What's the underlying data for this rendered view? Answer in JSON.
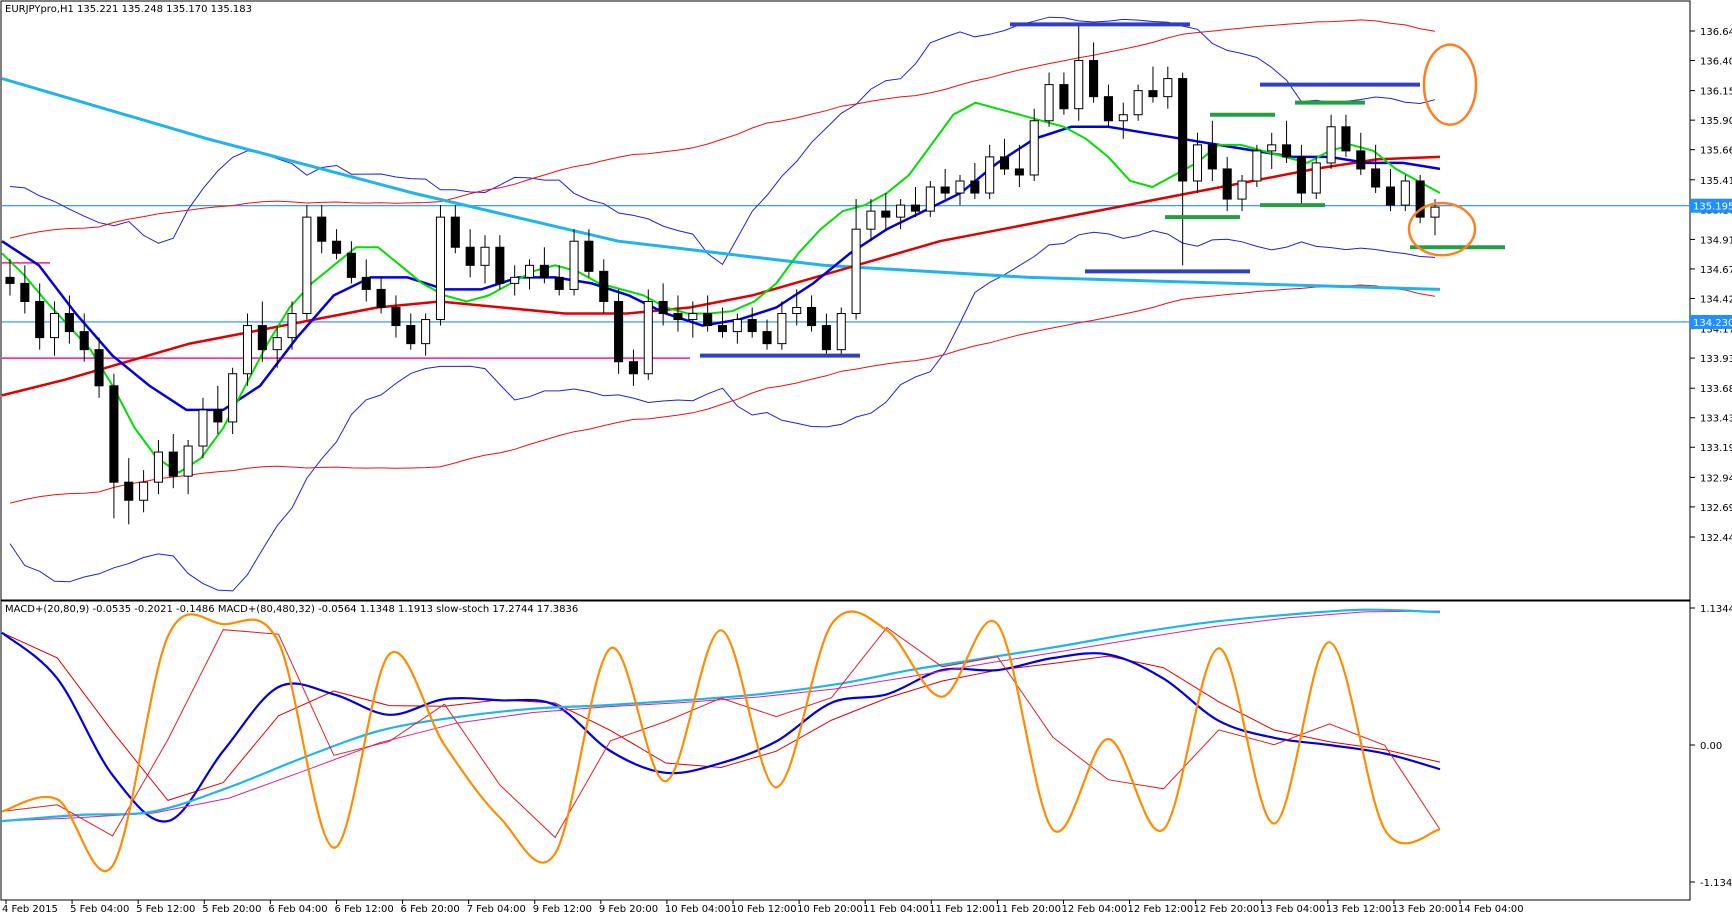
{
  "main_panel": {
    "header": "EURJPYpro,H1  135.221 135.248 135.170 135.183",
    "price_ticks": [
      "136.645",
      "136.400",
      "136.150",
      "135.905",
      "135.660",
      "135.410",
      "135.165",
      "134.915",
      "134.670",
      "134.425",
      "134.175",
      "133.930",
      "133.680",
      "133.435",
      "133.190",
      "132.940",
      "132.695",
      "132.445"
    ],
    "price_tags": [
      {
        "label": "135.195",
        "value": 135.195,
        "color": "#1e90ff"
      },
      {
        "label": "134.230",
        "value": 134.23,
        "color": "#1e90ff"
      }
    ]
  },
  "sub_panel": {
    "header": "MACD+(20,80,9) -0.0535 -0.2021 -0.1486  MACD+(80,480,32) -0.0564 1.1348 1.1913  slow-stoch 17.2744 17.3836",
    "ticks": [
      "1.1344",
      "0.00",
      "-1.1344"
    ]
  },
  "time_labels": [
    "4 Feb 2015",
    "5 Feb 04:00",
    "5 Feb 12:00",
    "5 Feb 20:00",
    "6 Feb 04:00",
    "6 Feb 12:00",
    "6 Feb 20:00",
    "7 Feb 04:00",
    "9 Feb 12:00",
    "9 Feb 20:00",
    "10 Feb 04:00",
    "10 Feb 12:00",
    "10 Feb 20:00",
    "11 Feb 04:00",
    "11 Feb 12:00",
    "11 Feb 20:00",
    "12 Feb 04:00",
    "12 Feb 12:00",
    "12 Feb 20:00",
    "13 Feb 04:00",
    "13 Feb 12:00",
    "13 Feb 20:00",
    "14 Feb 04:00"
  ],
  "colors": {
    "background": "#ffffff",
    "up_candle": "#ffffff",
    "down_candle": "#000000",
    "ma_fast": "#00e000",
    "ma_mid": "#0000e0",
    "ma_slow": "#e00000",
    "ma_long": "#1eb4f0",
    "bb_inner": "#2020e0",
    "bb_outer": "#ee1010",
    "hline": "#1e90ff",
    "pink_line": "#ff1493",
    "annot_blue": "#3040c0",
    "annot_green": "#20a040",
    "annot_orange": "#ff7f20",
    "macd1": "#0000e0",
    "macd1_signal": "#e00000",
    "macd2": "#1eb4f0",
    "macd2_signal": "#e0209a",
    "stoch": "#ff8c00",
    "stoch_signal": "#e02020"
  },
  "chart_data": [
    {
      "type": "candlestick",
      "title": "EURJPYpro,H1",
      "ohlc_last": {
        "open": 135.221,
        "high": 135.248,
        "low": 135.17,
        "close": 135.183
      },
      "ylim": [
        132.445,
        136.645
      ],
      "horizontal_lines": [
        135.195,
        134.23
      ],
      "pink_level": 133.93,
      "candles": [
        [
          134.6,
          134.75,
          134.45,
          134.55
        ],
        [
          134.55,
          134.7,
          134.3,
          134.4
        ],
        [
          134.4,
          134.55,
          134.0,
          134.1
        ],
        [
          134.1,
          134.4,
          133.95,
          134.3
        ],
        [
          134.3,
          134.45,
          134.05,
          134.15
        ],
        [
          134.15,
          134.3,
          133.9,
          134.0
        ],
        [
          134.0,
          134.1,
          133.6,
          133.7
        ],
        [
          133.7,
          133.8,
          132.6,
          132.9
        ],
        [
          132.9,
          133.1,
          132.55,
          132.75
        ],
        [
          132.75,
          133.0,
          132.65,
          132.9
        ],
        [
          132.9,
          133.25,
          132.8,
          133.15
        ],
        [
          133.15,
          133.3,
          132.85,
          132.95
        ],
        [
          132.95,
          133.25,
          132.8,
          133.2
        ],
        [
          133.2,
          133.6,
          133.1,
          133.5
        ],
        [
          133.5,
          133.7,
          133.3,
          133.4
        ],
        [
          133.4,
          133.85,
          133.3,
          133.8
        ],
        [
          133.8,
          134.3,
          133.7,
          134.2
        ],
        [
          134.2,
          134.4,
          133.9,
          134.0
        ],
        [
          134.0,
          134.2,
          133.85,
          134.1
        ],
        [
          134.1,
          134.4,
          134.0,
          134.3
        ],
        [
          134.3,
          135.2,
          134.25,
          135.1
        ],
        [
          135.1,
          135.2,
          134.8,
          134.9
        ],
        [
          134.9,
          135.0,
          134.75,
          134.8
        ],
        [
          134.8,
          134.9,
          134.55,
          134.6
        ],
        [
          134.6,
          134.75,
          134.4,
          134.5
        ],
        [
          134.5,
          134.6,
          134.3,
          134.35
        ],
        [
          134.35,
          134.45,
          134.1,
          134.2
        ],
        [
          134.2,
          134.3,
          134.0,
          134.05
        ],
        [
          134.05,
          134.3,
          133.95,
          134.25
        ],
        [
          134.25,
          135.2,
          134.2,
          135.1
        ],
        [
          135.1,
          135.2,
          134.8,
          134.85
        ],
        [
          134.85,
          135.0,
          134.6,
          134.7
        ],
        [
          134.7,
          134.95,
          134.55,
          134.85
        ],
        [
          134.85,
          134.95,
          134.5,
          134.55
        ],
        [
          134.55,
          134.7,
          134.45,
          134.6
        ],
        [
          134.6,
          134.75,
          134.5,
          134.7
        ],
        [
          134.7,
          134.85,
          134.55,
          134.6
        ],
        [
          134.6,
          134.7,
          134.45,
          134.5
        ],
        [
          134.5,
          135.0,
          134.45,
          134.9
        ],
        [
          134.9,
          135.0,
          134.6,
          134.65
        ],
        [
          134.65,
          134.75,
          134.3,
          134.4
        ],
        [
          134.4,
          134.5,
          133.8,
          133.9
        ],
        [
          133.9,
          134.0,
          133.7,
          133.8
        ],
        [
          133.8,
          134.5,
          133.75,
          134.4
        ],
        [
          134.4,
          134.55,
          134.2,
          134.3
        ],
        [
          134.3,
          134.45,
          134.15,
          134.25
        ],
        [
          134.25,
          134.4,
          134.1,
          134.3
        ],
        [
          134.3,
          134.45,
          134.15,
          134.2
        ],
        [
          134.2,
          134.35,
          134.1,
          134.15
        ],
        [
          134.15,
          134.3,
          134.05,
          134.25
        ],
        [
          134.25,
          134.35,
          134.1,
          134.15
        ],
        [
          134.15,
          134.25,
          134.0,
          134.05
        ],
        [
          134.05,
          134.4,
          134.0,
          134.3
        ],
        [
          134.3,
          134.5,
          134.2,
          134.35
        ],
        [
          134.35,
          134.45,
          134.15,
          134.2
        ],
        [
          134.2,
          134.3,
          133.95,
          134.0
        ],
        [
          134.0,
          134.35,
          133.95,
          134.3
        ],
        [
          134.3,
          135.25,
          134.25,
          135.0
        ],
        [
          135.0,
          135.25,
          134.9,
          135.15
        ],
        [
          135.15,
          135.3,
          135.0,
          135.1
        ],
        [
          135.1,
          135.25,
          135.0,
          135.2
        ],
        [
          135.2,
          135.35,
          135.1,
          135.15
        ],
        [
          135.15,
          135.4,
          135.1,
          135.35
        ],
        [
          135.35,
          135.5,
          135.25,
          135.3
        ],
        [
          135.3,
          135.45,
          135.2,
          135.4
        ],
        [
          135.4,
          135.55,
          135.25,
          135.3
        ],
        [
          135.3,
          135.7,
          135.25,
          135.6
        ],
        [
          135.6,
          135.75,
          135.45,
          135.5
        ],
        [
          135.5,
          135.7,
          135.35,
          135.45
        ],
        [
          135.45,
          136.0,
          135.4,
          135.9
        ],
        [
          135.9,
          136.3,
          135.85,
          136.2
        ],
        [
          136.2,
          136.3,
          135.95,
          136.0
        ],
        [
          136.0,
          136.7,
          135.9,
          136.4
        ],
        [
          136.4,
          136.55,
          136.05,
          136.1
        ],
        [
          136.1,
          136.2,
          135.85,
          135.9
        ],
        [
          135.9,
          136.05,
          135.75,
          135.95
        ],
        [
          135.95,
          136.2,
          135.9,
          136.15
        ],
        [
          136.15,
          136.35,
          136.05,
          136.1
        ],
        [
          136.1,
          136.35,
          136.0,
          136.25
        ],
        [
          136.25,
          136.3,
          134.7,
          135.4
        ],
        [
          135.4,
          135.8,
          135.3,
          135.7
        ],
        [
          135.7,
          135.9,
          135.4,
          135.5
        ],
        [
          135.5,
          135.6,
          135.15,
          135.25
        ],
        [
          135.25,
          135.45,
          135.15,
          135.4
        ],
        [
          135.4,
          135.7,
          135.35,
          135.65
        ],
        [
          135.65,
          135.8,
          135.5,
          135.7
        ],
        [
          135.7,
          135.9,
          135.55,
          135.6
        ],
        [
          135.6,
          135.7,
          135.2,
          135.3
        ],
        [
          135.3,
          135.6,
          135.25,
          135.55
        ],
        [
          135.55,
          135.95,
          135.5,
          135.85
        ],
        [
          135.85,
          135.95,
          135.6,
          135.65
        ],
        [
          135.65,
          135.8,
          135.45,
          135.5
        ],
        [
          135.5,
          135.7,
          135.3,
          135.35
        ],
        [
          135.35,
          135.5,
          135.15,
          135.2
        ],
        [
          135.2,
          135.45,
          135.15,
          135.4
        ],
        [
          135.4,
          135.45,
          135.05,
          135.1
        ],
        [
          135.1,
          135.25,
          134.95,
          135.183
        ]
      ],
      "indicators": {
        "ma_fast": [
          134.8,
          134.62,
          134.4,
          134.2,
          134.0,
          133.7,
          133.35,
          133.1,
          132.98,
          133.1,
          133.35,
          133.7,
          134.05,
          134.35,
          134.55,
          134.7,
          134.85,
          134.85,
          134.7,
          134.55,
          134.45,
          134.4,
          134.45,
          134.55,
          134.65,
          134.7,
          134.65,
          134.55,
          134.5,
          134.45,
          134.35,
          134.3,
          134.3,
          134.32,
          134.4,
          134.55,
          134.8,
          135.0,
          135.15,
          135.2,
          135.3,
          135.45,
          135.7,
          135.95,
          136.05,
          136.0,
          135.95,
          135.9,
          135.85,
          135.75,
          135.6,
          135.4,
          135.35,
          135.45,
          135.55,
          135.7,
          135.7,
          135.65,
          135.6,
          135.55,
          135.65,
          135.7,
          135.65,
          135.5,
          135.4,
          135.3
        ],
        "ma_mid": [
          134.9,
          134.7,
          134.3,
          133.95,
          133.7,
          133.5,
          133.5,
          133.7,
          134.1,
          134.45,
          134.6,
          134.6,
          134.5,
          134.5,
          134.6,
          134.6,
          134.55,
          134.45,
          134.3,
          134.2,
          134.25,
          134.35,
          134.55,
          134.8,
          135.0,
          135.15,
          135.3,
          135.55,
          135.75,
          135.85,
          135.85,
          135.8,
          135.75,
          135.7,
          135.65,
          135.6,
          135.6,
          135.55,
          135.55,
          135.5
        ],
        "ma_slow": [
          133.62,
          133.75,
          133.9,
          134.05,
          134.15,
          134.25,
          134.35,
          134.4,
          134.35,
          134.3,
          134.3,
          134.35,
          134.45,
          134.6,
          134.75,
          134.9,
          135.0,
          135.1,
          135.2,
          135.3,
          135.4,
          135.5,
          135.58,
          135.6
        ],
        "ma_long": [
          136.25,
          135.75,
          135.3,
          134.9,
          134.7,
          134.6,
          134.55,
          134.5
        ]
      },
      "annotation_levels": {
        "blue": [
          136.7,
          136.2,
          134.65,
          133.95
        ],
        "green": [
          135.95,
          135.2,
          135.1,
          134.85
        ],
        "pink": 133.93
      }
    },
    {
      "type": "line",
      "title": "MACD+(20,80,9) / MACD+(80,480,32) / slow-stoch",
      "ylim": [
        -1.1344,
        1.1344
      ],
      "series": [
        {
          "name": "MACD+(20,80,9)",
          "values": [
            0.93,
            0.55,
            -0.25,
            -0.63,
            -0.05,
            0.48,
            0.42,
            0.25,
            0.38,
            0.37,
            0.33,
            -0.05,
            -0.23,
            -0.15,
            0.03,
            0.35,
            0.42,
            0.62,
            0.62,
            0.72,
            0.75,
            0.55,
            0.2,
            0.06,
            0.0,
            -0.07,
            -0.2
          ]
        },
        {
          "name": "MACD+(80,480,32)",
          "values": [
            -0.63,
            -0.58,
            -0.55,
            -0.35,
            -0.1,
            0.12,
            0.23,
            0.3,
            0.33,
            0.37,
            0.42,
            0.5,
            0.62,
            0.72,
            0.82,
            0.93,
            1.02,
            1.08,
            1.12,
            1.1
          ]
        },
        {
          "name": "slow-stoch",
          "values": [
            -0.55,
            -0.45,
            -1.0,
            0.9,
            1.0,
            0.85,
            -0.85,
            0.75,
            0.0,
            -0.6,
            -0.9,
            0.8,
            -0.3,
            0.95,
            -0.35,
            1.0,
            0.95,
            0.4,
            1.0,
            -0.7,
            0.05,
            -0.7,
            0.8,
            -0.65,
            0.85,
            -0.7,
            -0.7
          ]
        }
      ]
    }
  ]
}
